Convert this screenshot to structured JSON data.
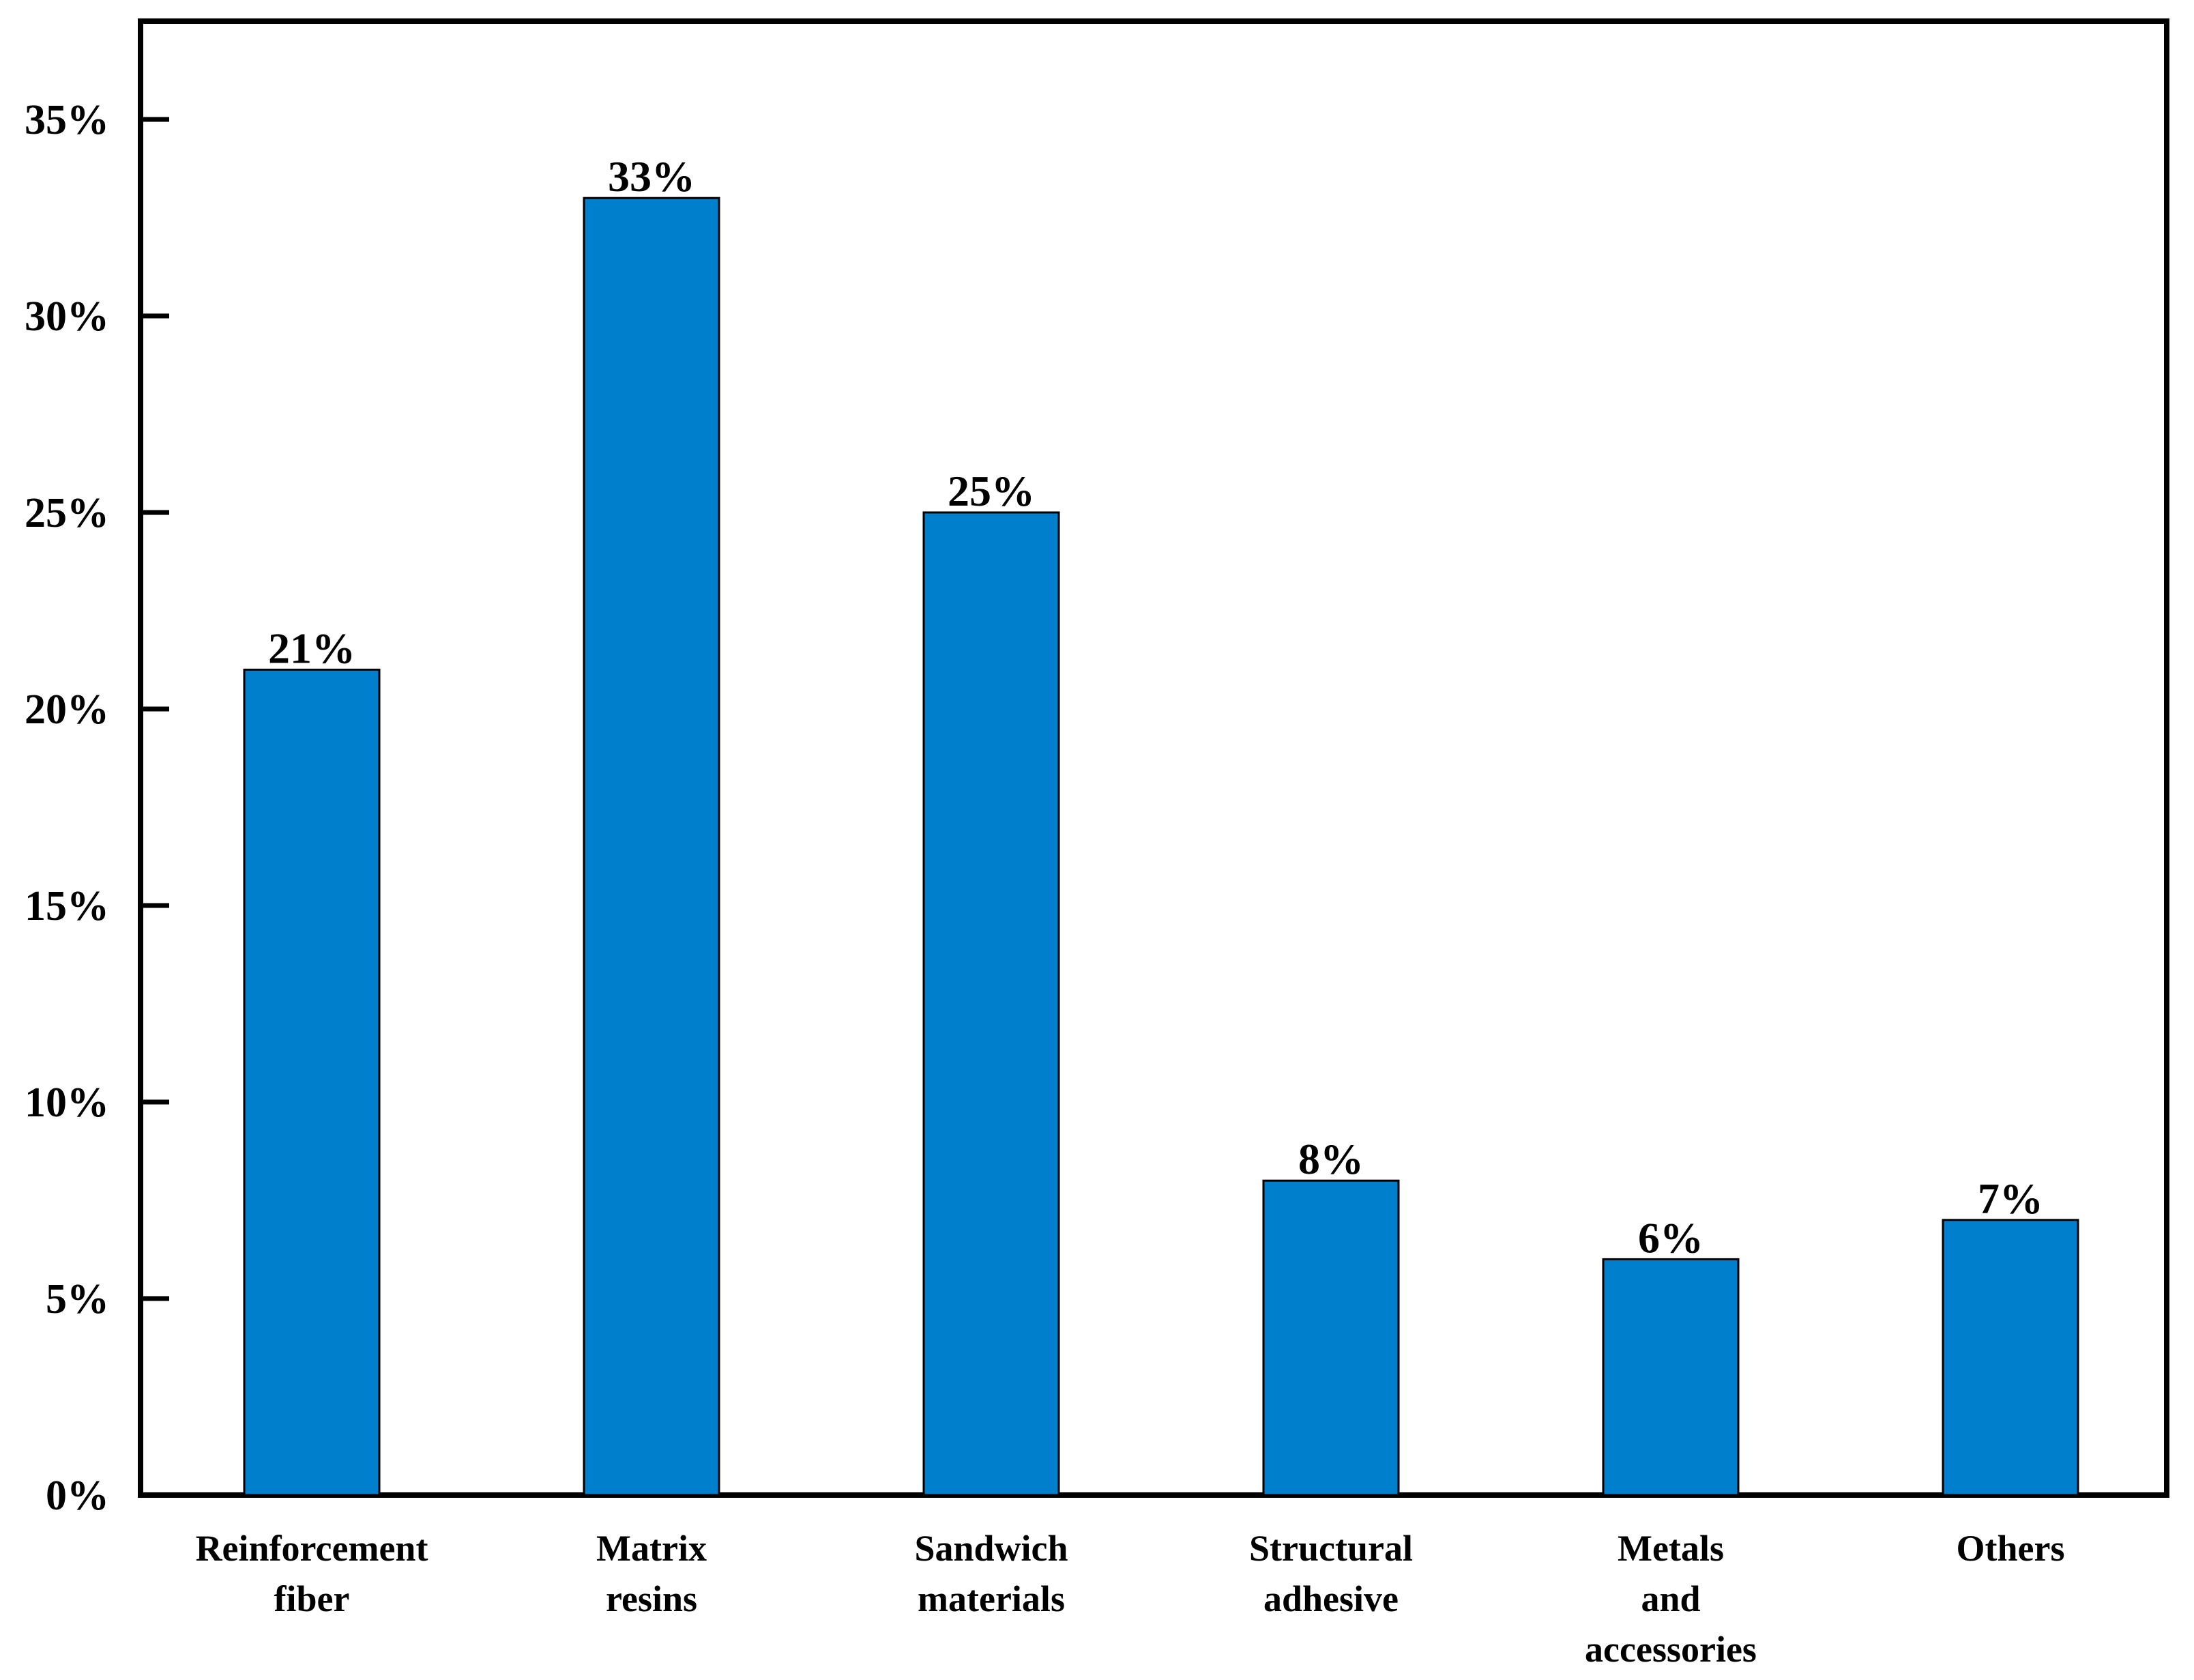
{
  "chart_data": {
    "type": "bar",
    "categories": [
      [
        "Reinforcement",
        "fiber"
      ],
      [
        "Matrix",
        "resins"
      ],
      [
        "Sandwich",
        "materials"
      ],
      [
        "Structural",
        "adhesive"
      ],
      [
        "Metals",
        "and",
        "accessories"
      ],
      [
        "Others"
      ]
    ],
    "values": [
      21,
      33,
      25,
      8,
      6,
      7
    ],
    "data_labels": [
      "21%",
      "33%",
      "25%",
      "8%",
      "6%",
      "7%"
    ],
    "yticks": [
      0,
      5,
      10,
      15,
      20,
      25,
      30,
      35
    ],
    "ytick_labels": [
      "0%",
      "5%",
      "10%",
      "15%",
      "20%",
      "25%",
      "30%",
      "35%"
    ],
    "ylim": [
      0,
      37.5
    ],
    "title": "",
    "xlabel": "",
    "ylabel": "",
    "grid": false,
    "legend": "none",
    "colors": {
      "bar_fill": "#0080CC",
      "bar_stroke": "#000000",
      "axis": "#000000",
      "background": "#FFFFFF"
    }
  }
}
